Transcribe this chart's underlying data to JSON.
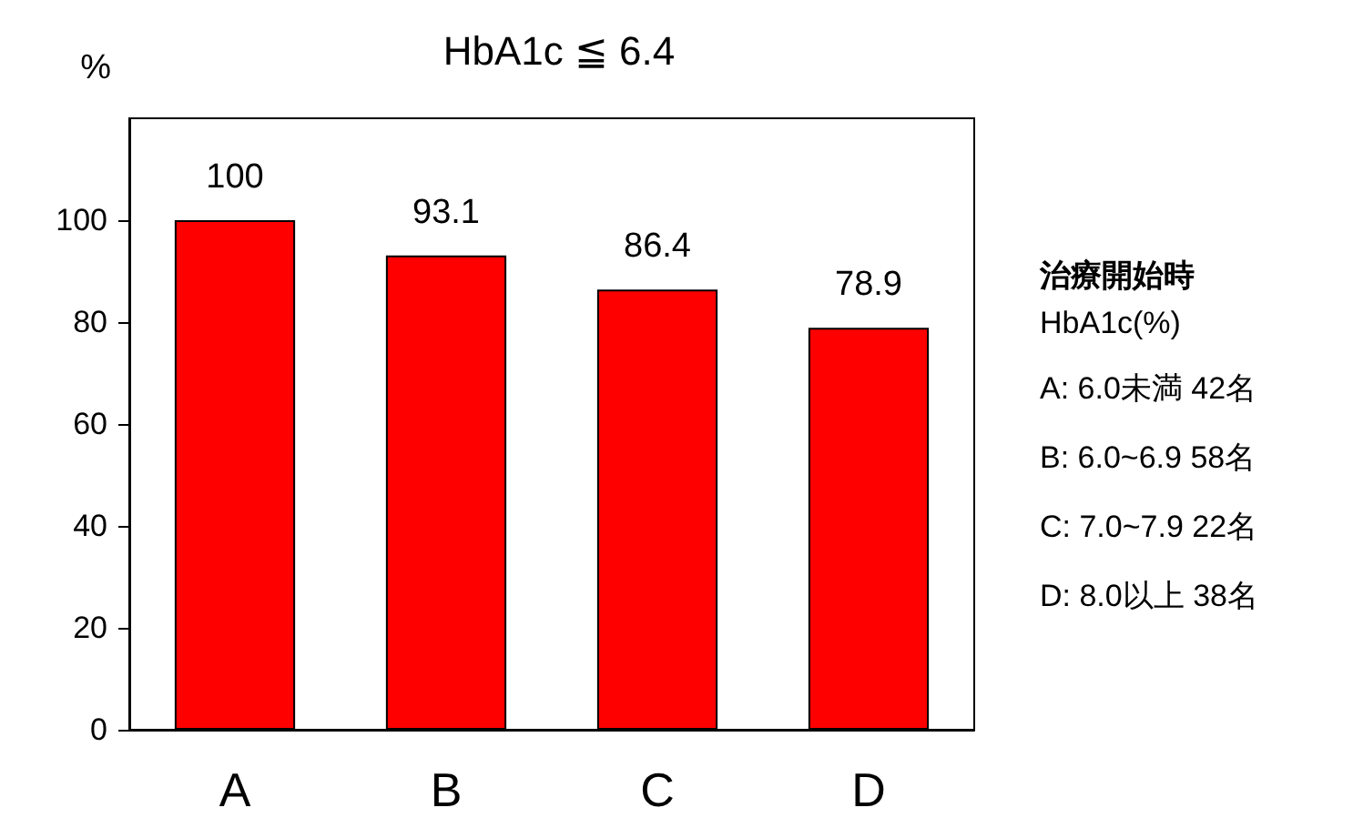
{
  "chart_data": {
    "type": "bar",
    "title": "HbA1c ≦ 6.4",
    "ylabel": "%",
    "categories": [
      "A",
      "B",
      "C",
      "D"
    ],
    "values": [
      100,
      93.1,
      86.4,
      78.9
    ],
    "color": "#ff0000",
    "data_labels": true,
    "ylim": [
      0,
      120
    ],
    "yticks": [
      0,
      20,
      40,
      60,
      80,
      100
    ],
    "grid": false,
    "annotations": [
      "治療開始時",
      "HbA1c(%)",
      "A: 6.0未満 42名",
      "B: 6.0~6.9 58名",
      "C: 7.0~7.9 22名",
      "D: 8.0以上 38名"
    ]
  }
}
